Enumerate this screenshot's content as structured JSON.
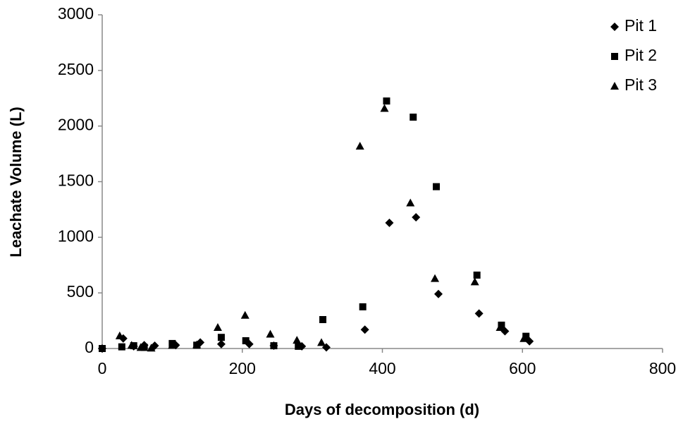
{
  "chart_data": {
    "type": "scatter",
    "x_label": "Days of decomposition (d)",
    "y_label": "Leachate Volume (L)",
    "xlim": [
      0,
      800
    ],
    "xticks": [
      0,
      200,
      400,
      600,
      800
    ],
    "ylim": [
      0,
      3000
    ],
    "yticks": [
      0,
      500,
      1000,
      1500,
      2000,
      2500,
      3000
    ],
    "grid": false,
    "legend": "top-right",
    "series": [
      {
        "name": "Pit 1",
        "color": "#000000",
        "marker": "diamond",
        "x": [
          0,
          30,
          45,
          60,
          75,
          105,
          140,
          170,
          210,
          245,
          285,
          320,
          375,
          410,
          448,
          480,
          538,
          575,
          610
        ],
        "values": [
          0,
          90,
          20,
          30,
          25,
          30,
          55,
          40,
          40,
          25,
          20,
          10,
          170,
          1130,
          1180,
          490,
          315,
          155,
          65
        ]
      },
      {
        "name": "Pit 2",
        "color": "#000000",
        "marker": "square",
        "x": [
          0,
          28,
          45,
          60,
          100,
          135,
          170,
          205,
          245,
          280,
          315,
          372,
          406,
          444,
          477,
          535,
          570,
          605
        ],
        "values": [
          0,
          15,
          25,
          10,
          45,
          30,
          100,
          70,
          25,
          20,
          260,
          375,
          2225,
          2080,
          1455,
          660,
          210,
          110
        ]
      },
      {
        "name": "Pit 3",
        "color": "#000000",
        "marker": "triangle",
        "x": [
          25,
          42,
          55,
          70,
          100,
          135,
          165,
          204,
          240,
          278,
          313,
          368,
          403,
          440,
          475,
          532,
          568,
          602
        ],
        "values": [
          115,
          30,
          10,
          5,
          30,
          35,
          190,
          300,
          130,
          75,
          55,
          1820,
          2160,
          1310,
          630,
          600,
          190,
          90
        ]
      }
    ]
  }
}
